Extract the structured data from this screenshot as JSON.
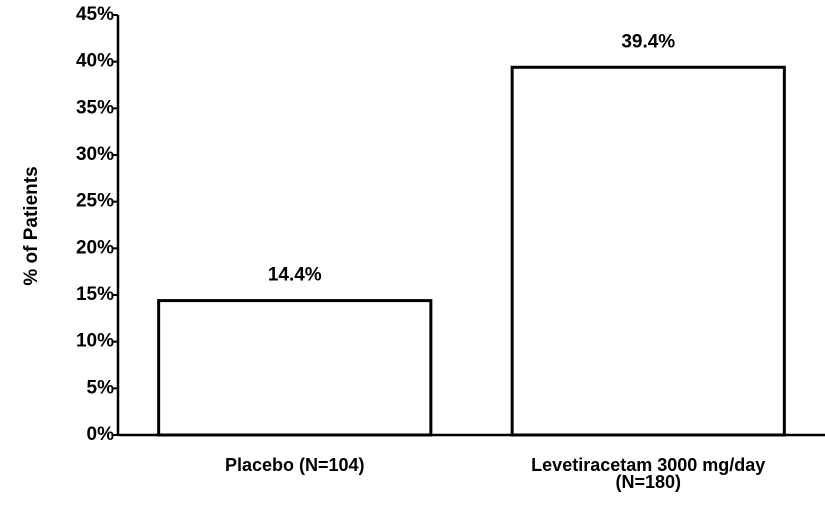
{
  "chart_data": {
    "type": "bar",
    "y_axis_label": "% of Patients",
    "categories": [
      "Placebo (N=104)",
      "Levetiracetam 3000 mg/day\n(N=180)"
    ],
    "values": [
      14.4,
      39.4
    ],
    "value_labels": [
      "14.4%",
      "39.4%"
    ],
    "color": "#ffffff",
    "annotation": "*",
    "ylim": [
      0,
      45
    ],
    "yticks": [
      {
        "value": 0,
        "label": "0%"
      },
      {
        "value": 5,
        "label": "5%"
      },
      {
        "value": 10,
        "label": "10%"
      },
      {
        "value": 15,
        "label": "15%"
      },
      {
        "value": 20,
        "label": "20%"
      },
      {
        "value": 25,
        "label": "25%"
      },
      {
        "value": 30,
        "label": "30%"
      },
      {
        "value": 35,
        "label": "35%"
      },
      {
        "value": 40,
        "label": "40%"
      },
      {
        "value": 45,
        "label": "45%"
      }
    ],
    "grid": false
  }
}
